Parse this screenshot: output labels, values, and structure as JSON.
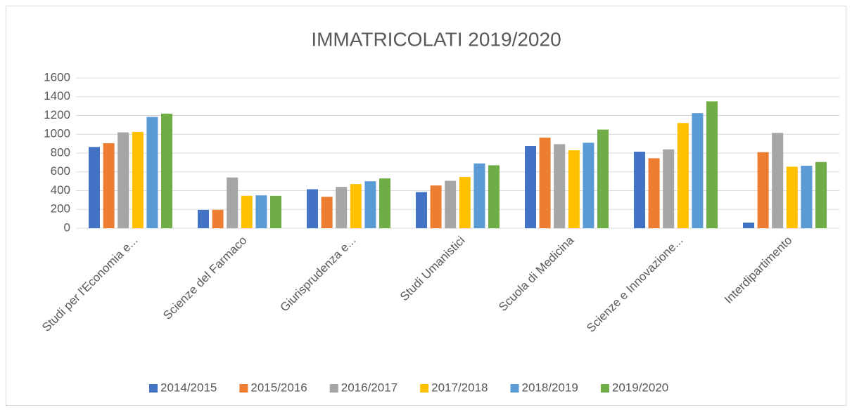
{
  "chart_data": {
    "type": "bar",
    "title": "IMMATRICOLATI 2019/2020",
    "categories": [
      "Studi per l'Economia e...",
      "Scienze del Farmaco",
      "Giurisprudenza e...",
      "Studi Umanistici",
      "Scuola di Medicina",
      "Scienze e Innovazione...",
      "Interdipartimento"
    ],
    "series": [
      {
        "name": "2014/2015",
        "color": "#4472c4",
        "values": [
          865,
          195,
          415,
          385,
          875,
          815,
          60
        ]
      },
      {
        "name": "2015/2016",
        "color": "#ed7d31",
        "values": [
          905,
          195,
          335,
          455,
          965,
          745,
          810
        ]
      },
      {
        "name": "2016/2017",
        "color": "#a5a5a5",
        "values": [
          1020,
          540,
          440,
          505,
          895,
          840,
          1015
        ]
      },
      {
        "name": "2017/2018",
        "color": "#ffc000",
        "values": [
          1025,
          345,
          470,
          545,
          830,
          1120,
          655
        ]
      },
      {
        "name": "2018/2019",
        "color": "#5b9bd5",
        "values": [
          1185,
          350,
          500,
          690,
          910,
          1225,
          665
        ]
      },
      {
        "name": "2019/2020",
        "color": "#70ad47",
        "values": [
          1220,
          345,
          530,
          670,
          1050,
          1350,
          705
        ]
      }
    ],
    "ylim": [
      0,
      1600
    ],
    "yticks": [
      0,
      200,
      400,
      600,
      800,
      1000,
      1200,
      1400,
      1600
    ],
    "grid": true,
    "legend": "bottom"
  }
}
